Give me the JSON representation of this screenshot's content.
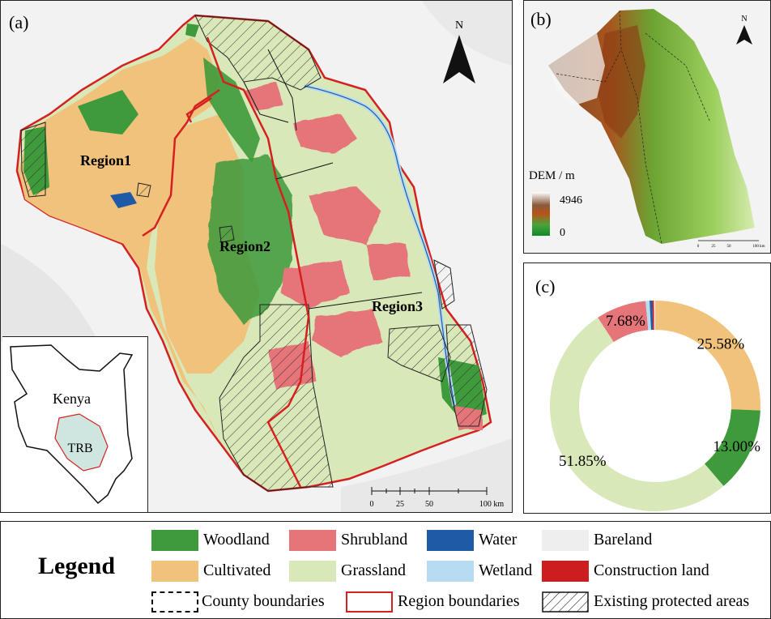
{
  "panel_a": {
    "label": "(a)",
    "north": "N",
    "regions": [
      "Region1",
      "Region2",
      "Region3"
    ],
    "inset_country": "Kenya",
    "inset_basin": "TRB",
    "scale_ticks": [
      "0",
      "25",
      "50",
      "100 km"
    ]
  },
  "panel_b": {
    "label": "(b)",
    "north": "N",
    "dem_title": "DEM / m",
    "dem_max": "4946",
    "dem_min": "0",
    "scale_ticks": [
      "0",
      "25",
      "50",
      "100 km"
    ]
  },
  "panel_c": {
    "label": "(c)"
  },
  "chart_data": {
    "type": "pie",
    "style": "donut",
    "slices": [
      {
        "label": "Cultivated",
        "value": 25.58,
        "text": "25.58%",
        "color": "#f0c27b"
      },
      {
        "label": "Woodland",
        "value": 13.0,
        "text": "13.00%",
        "color": "#3e9a3a"
      },
      {
        "label": "Grassland",
        "value": 51.85,
        "text": "51.85%",
        "color": "#d9e8b8"
      },
      {
        "label": "Shrubland",
        "value": 7.68,
        "text": "7.68%",
        "color": "#e6757a"
      },
      {
        "label": "Wetland",
        "value": 0.6,
        "text": "",
        "color": "#b7dbf1"
      },
      {
        "label": "Water",
        "value": 0.4,
        "text": "",
        "color": "#1f5aa6"
      },
      {
        "label": "Construction land",
        "value": 0.25,
        "text": "",
        "color": "#cc1e1e"
      },
      {
        "label": "Bareland",
        "value": 0.2,
        "text": "",
        "color": "#eeeeee"
      }
    ]
  },
  "legend": {
    "title": "Legend",
    "classes": [
      {
        "label": "Woodland",
        "color": "#3e9a3a"
      },
      {
        "label": "Shrubland",
        "color": "#e6757a"
      },
      {
        "label": "Water",
        "color": "#1f5aa6"
      },
      {
        "label": "Bareland",
        "color": "#eeeeee"
      },
      {
        "label": "Cultivated",
        "color": "#f0c27b"
      },
      {
        "label": "Grassland",
        "color": "#d9e8b8"
      },
      {
        "label": "Wetland",
        "color": "#b7dbf1"
      },
      {
        "label": "Construction land",
        "color": "#cc1e1e"
      }
    ],
    "boundaries": [
      "County boundaries",
      "Region boundaries",
      "Existing protected areas"
    ]
  }
}
